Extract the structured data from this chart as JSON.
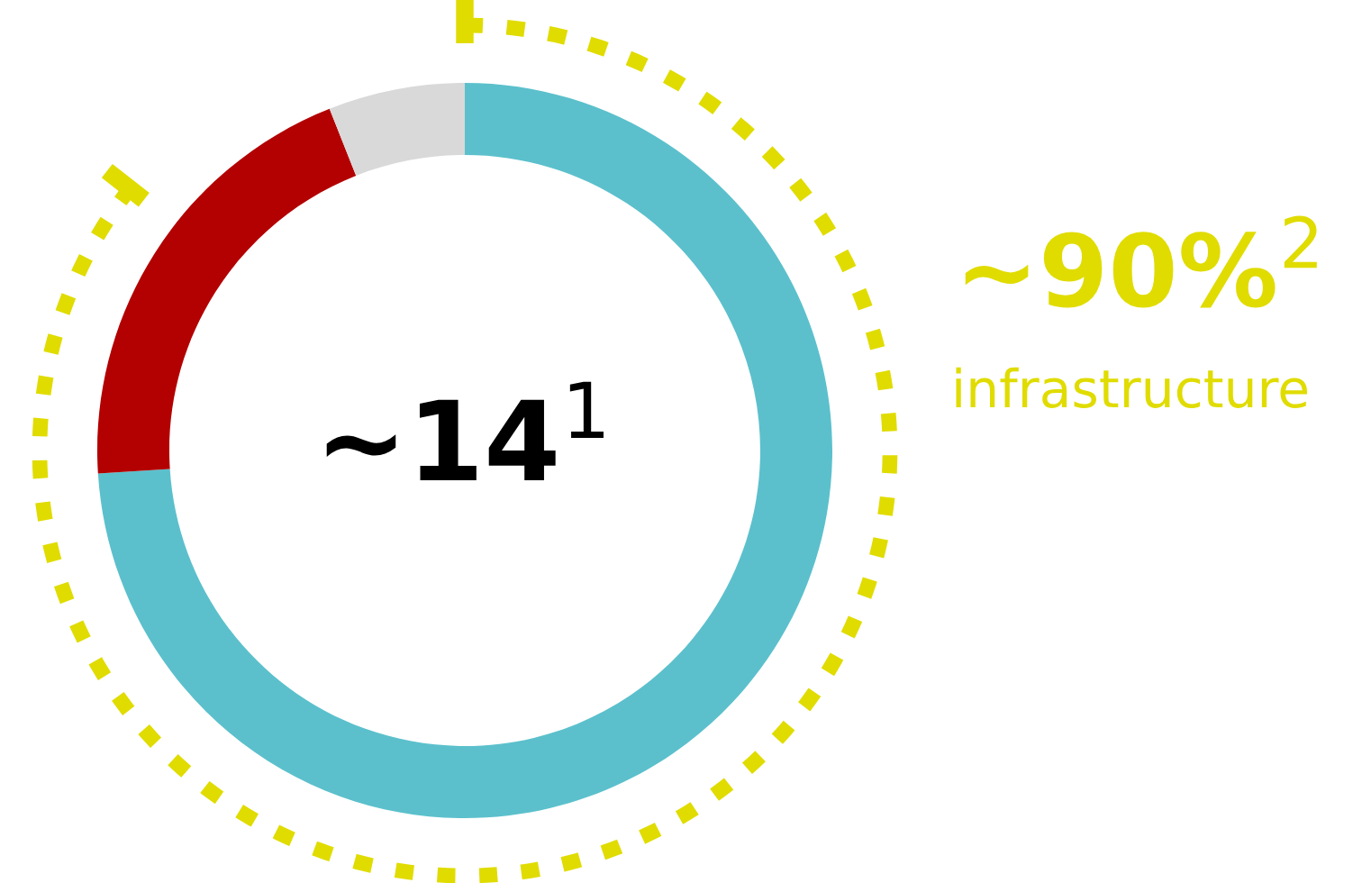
{
  "chart_data": {
    "type": "donut",
    "categories": [
      null,
      null,
      null
    ],
    "values": [
      74,
      20,
      6
    ],
    "colors": [
      "#5bc0cc",
      "#b30000",
      "#d9d9d9"
    ],
    "annotations": [
      "~14$^{1}$",
      "~90%$^{2}$",
      "infrastructure"
    ]
  }
}
